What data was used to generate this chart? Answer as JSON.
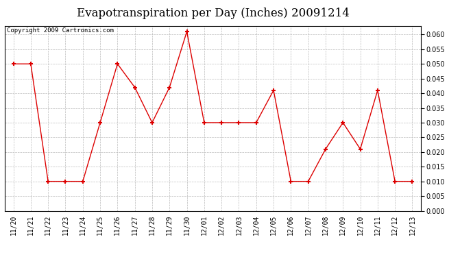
{
  "title": "Evapotranspiration per Day (Inches) 20091214",
  "copyright_text": "Copyright 2009 Cartronics.com",
  "x_labels": [
    "11/20",
    "11/21",
    "11/22",
    "11/23",
    "11/24",
    "11/25",
    "11/26",
    "11/27",
    "11/28",
    "11/29",
    "11/30",
    "12/01",
    "12/02",
    "12/03",
    "12/04",
    "12/05",
    "12/06",
    "12/07",
    "12/08",
    "12/09",
    "12/10",
    "12/11",
    "12/12",
    "12/13"
  ],
  "y_values": [
    0.05,
    0.05,
    0.01,
    0.01,
    0.01,
    0.03,
    0.05,
    0.042,
    0.03,
    0.042,
    0.061,
    0.03,
    0.03,
    0.03,
    0.03,
    0.041,
    0.01,
    0.01,
    0.021,
    0.03,
    0.021,
    0.041,
    0.01,
    0.01
  ],
  "line_color": "#dd0000",
  "marker": "+",
  "marker_size": 5,
  "marker_linewidth": 1.5,
  "ylim": [
    0.0,
    0.063
  ],
  "yticks": [
    0.0,
    0.005,
    0.01,
    0.015,
    0.02,
    0.025,
    0.03,
    0.035,
    0.04,
    0.045,
    0.05,
    0.055,
    0.06
  ],
  "background_color": "#ffffff",
  "plot_bg_color": "#ffffff",
  "grid_color": "#bbbbbb",
  "title_fontsize": 12,
  "copyright_fontsize": 6.5,
  "tick_fontsize": 7,
  "linewidth": 1.0
}
